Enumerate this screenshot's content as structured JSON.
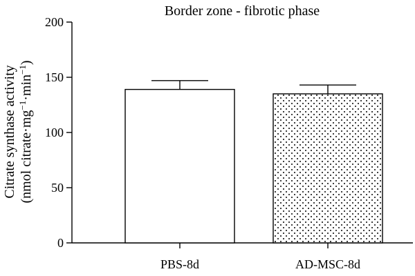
{
  "chart_data": {
    "type": "bar",
    "title": "Border zone - fibrotic phase",
    "xlabel": "",
    "ylabel_line1": "Citrate synthase activity",
    "ylabel_line2_prefix": "(nmol citrate·mg",
    "ylabel_line2_sup1": "−1",
    "ylabel_line2_mid": "·min",
    "ylabel_line2_sup2": "−1",
    "ylabel_line2_suffix": ")",
    "ylim": [
      0,
      200
    ],
    "yticks": [
      0,
      50,
      100,
      150,
      200
    ],
    "categories": [
      "PBS-8d",
      "AD-MSC-8d"
    ],
    "values": [
      139,
      135
    ],
    "errors": [
      8,
      8
    ],
    "fills": [
      "white",
      "dots"
    ],
    "grid": false
  },
  "colors": {
    "axis": "#000000",
    "bar_fill": "#ffffff",
    "dot_fill": "#000000"
  }
}
